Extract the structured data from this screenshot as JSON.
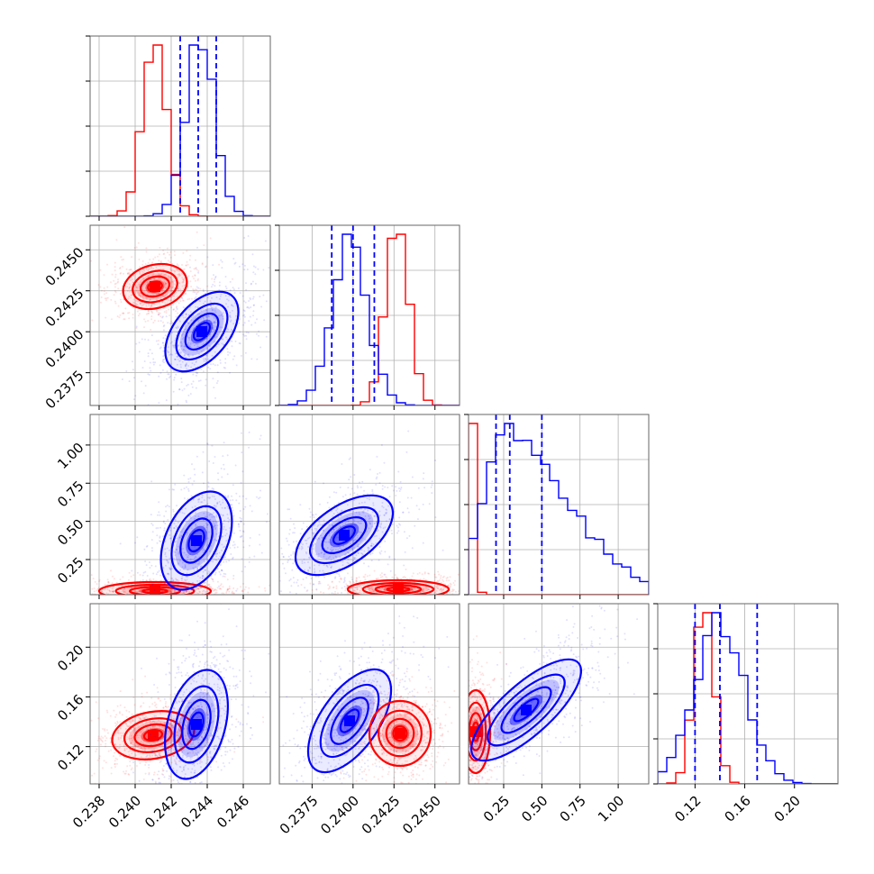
{
  "chart_data": {
    "type": "corner",
    "series": [
      {
        "name": "",
        "color": "#ff0000"
      },
      {
        "name": "",
        "color": "#0000ff"
      }
    ],
    "quantile_color": "#0000ff",
    "parameters": [
      {
        "range": [
          0.2375,
          0.2475
        ],
        "ticks": [
          "0.238",
          "0.240",
          "0.242",
          "0.244",
          "0.246"
        ],
        "tick_values": [
          0.238,
          0.24,
          0.242,
          0.244,
          0.246
        ]
      },
      {
        "range": [
          0.2355,
          0.2465
        ],
        "ticks": [
          "0.2375",
          "0.2400",
          "0.2425",
          "0.2450"
        ],
        "tick_values": [
          0.2375,
          0.24,
          0.2425,
          0.245
        ]
      },
      {
        "range": [
          0.02,
          1.2
        ],
        "ticks": [
          "0.25",
          "0.50",
          "0.75",
          "1.00"
        ],
        "tick_values": [
          0.25,
          0.5,
          0.75,
          1.0
        ]
      },
      {
        "range": [
          0.09,
          0.235
        ],
        "ticks": [
          "0.12",
          "0.16",
          "0.20"
        ],
        "tick_values": [
          0.12,
          0.16,
          0.2
        ]
      }
    ],
    "quantiles_blue": [
      [
        0.2425,
        0.2435,
        0.2445
      ],
      [
        0.2387,
        0.24,
        0.2413
      ],
      [
        0.2,
        0.29,
        0.5
      ],
      [
        0.12,
        0.14,
        0.17
      ]
    ],
    "marginals": [
      {
        "red_center": 0.2411,
        "red_sd": 0.0007,
        "blue_center": 0.2436,
        "blue_sd": 0.0008
      },
      {
        "red_center": 0.2427,
        "red_sd": 0.0007,
        "blue_center": 0.2398,
        "blue_sd": 0.0011
      },
      {
        "red_center": 0.05,
        "red_sd": 0.02,
        "blue_center": 0.25,
        "blue_sd": 0.14
      },
      {
        "red_center": 0.127,
        "red_sd": 0.008,
        "blue_center": 0.14,
        "blue_sd": 0.02
      }
    ],
    "grid": true
  }
}
